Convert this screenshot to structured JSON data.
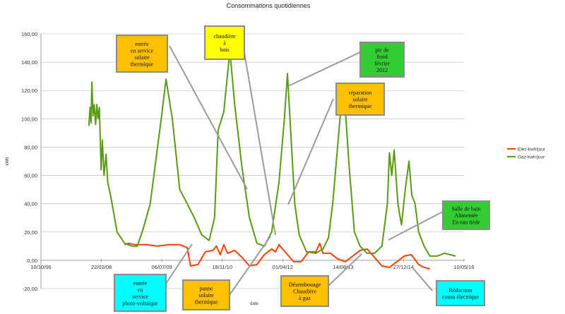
{
  "chart_data": {
    "type": "line",
    "title": "Consommations quotidiennes",
    "xlabel": "date",
    "ylabel": "kWh",
    "ylim": [
      -20,
      160
    ],
    "xlim": [
      "2006-10-10",
      "2016-05-10"
    ],
    "y_ticks": [
      "-20,00",
      "0,00",
      "20,00",
      "40,00",
      "60,00",
      "80,00",
      "100,00",
      "120,00",
      "140,00",
      "160,00"
    ],
    "x_ticks": [
      "10/10/06",
      "22/02/08",
      "06/07/09",
      "18/11/10",
      "01/04/12",
      "14/08/13",
      "27/12/14",
      "10/05/16"
    ],
    "grid": "horizontal",
    "legend_position": "right",
    "series": [
      {
        "name": "Elec-kwh/jour",
        "color": "#ff4000",
        "points": [
          [
            "2008-09-01",
            11
          ],
          [
            "2008-10-01",
            12
          ],
          [
            "2008-12-01",
            11
          ],
          [
            "2009-03-01",
            11
          ],
          [
            "2009-06-01",
            10
          ],
          [
            "2009-09-01",
            11
          ],
          [
            "2009-12-01",
            11
          ],
          [
            "2010-02-01",
            9
          ],
          [
            "2010-03-01",
            -4
          ],
          [
            "2010-05-01",
            -3
          ],
          [
            "2010-07-01",
            6
          ],
          [
            "2010-09-01",
            7
          ],
          [
            "2010-10-01",
            10
          ],
          [
            "2010-11-01",
            4
          ],
          [
            "2010-12-01",
            11
          ],
          [
            "2011-01-01",
            5
          ],
          [
            "2011-03-01",
            7
          ],
          [
            "2011-05-01",
            2
          ],
          [
            "2011-07-01",
            -4
          ],
          [
            "2011-09-01",
            -3
          ],
          [
            "2011-11-01",
            4
          ],
          [
            "2012-01-01",
            8
          ],
          [
            "2012-02-01",
            6
          ],
          [
            "2012-03-01",
            11
          ],
          [
            "2012-05-01",
            5
          ],
          [
            "2012-07-01",
            -1
          ],
          [
            "2012-09-01",
            -1
          ],
          [
            "2012-11-01",
            6
          ],
          [
            "2013-01-01",
            6
          ],
          [
            "2013-02-01",
            12
          ],
          [
            "2013-03-01",
            5
          ],
          [
            "2013-05-01",
            5
          ],
          [
            "2013-07-01",
            1
          ],
          [
            "2013-09-01",
            -1
          ],
          [
            "2013-11-01",
            3
          ],
          [
            "2014-01-01",
            7
          ],
          [
            "2014-03-01",
            8
          ],
          [
            "2014-05-01",
            2
          ],
          [
            "2014-07-01",
            -4
          ],
          [
            "2014-09-01",
            -5
          ],
          [
            "2014-11-01",
            -1
          ],
          [
            "2015-01-01",
            3
          ],
          [
            "2015-03-01",
            4
          ],
          [
            "2015-05-01",
            -3
          ],
          [
            "2015-06-15",
            -5
          ],
          [
            "2015-08-01",
            -6
          ]
        ]
      },
      {
        "name": "Gaz-kwh/jour",
        "color": "#5a9a14",
        "points": [
          [
            "2007-11-10",
            95
          ],
          [
            "2007-11-20",
            108
          ],
          [
            "2007-11-28",
            97
          ],
          [
            "2007-12-05",
            126
          ],
          [
            "2007-12-15",
            102
          ],
          [
            "2007-12-25",
            110
          ],
          [
            "2008-01-05",
            96
          ],
          [
            "2008-01-15",
            110
          ],
          [
            "2008-01-25",
            100
          ],
          [
            "2008-02-05",
            108
          ],
          [
            "2008-02-20",
            64
          ],
          [
            "2008-03-01",
            85
          ],
          [
            "2008-03-15",
            60
          ],
          [
            "2008-04-01",
            75
          ],
          [
            "2008-04-15",
            55
          ],
          [
            "2008-05-10",
            45
          ],
          [
            "2008-07-01",
            20
          ],
          [
            "2008-09-01",
            12
          ],
          [
            "2008-11-01",
            10
          ],
          [
            "2008-12-15",
            10
          ],
          [
            "2009-02-01",
            22
          ],
          [
            "2009-04-01",
            40
          ],
          [
            "2009-07-01",
            100
          ],
          [
            "2009-08-10",
            128
          ],
          [
            "2009-10-01",
            100
          ],
          [
            "2009-12-01",
            50
          ],
          [
            "2010-02-01",
            40
          ],
          [
            "2010-04-01",
            30
          ],
          [
            "2010-06-01",
            18
          ],
          [
            "2010-08-01",
            14
          ],
          [
            "2010-09-15",
            30
          ],
          [
            "2010-10-15",
            92
          ],
          [
            "2010-12-01",
            105
          ],
          [
            "2011-01-20",
            148
          ],
          [
            "2011-03-01",
            110
          ],
          [
            "2011-05-01",
            65
          ],
          [
            "2011-07-01",
            30
          ],
          [
            "2011-09-01",
            12
          ],
          [
            "2011-11-01",
            10
          ],
          [
            "2012-01-01",
            20
          ],
          [
            "2012-03-01",
            55
          ],
          [
            "2012-04-15",
            100
          ],
          [
            "2012-05-10",
            132
          ],
          [
            "2012-06-10",
            85
          ],
          [
            "2012-07-10",
            40
          ],
          [
            "2012-08-15",
            18
          ],
          [
            "2012-10-15",
            6
          ],
          [
            "2013-01-01",
            5
          ],
          [
            "2013-03-01",
            8
          ],
          [
            "2013-04-15",
            16
          ],
          [
            "2013-05-20",
            40
          ],
          [
            "2013-07-01",
            82
          ],
          [
            "2013-07-25",
            106
          ],
          [
            "2013-08-20",
            122
          ],
          [
            "2013-10-01",
            68
          ],
          [
            "2013-11-15",
            20
          ],
          [
            "2014-01-01",
            10
          ],
          [
            "2014-03-01",
            5
          ],
          [
            "2014-05-01",
            5
          ],
          [
            "2014-07-01",
            10
          ],
          [
            "2014-08-15",
            40
          ],
          [
            "2014-09-01",
            76
          ],
          [
            "2014-09-20",
            60
          ],
          [
            "2014-10-10",
            78
          ],
          [
            "2014-11-10",
            40
          ],
          [
            "2014-12-10",
            25
          ],
          [
            "2015-01-10",
            50
          ],
          [
            "2015-02-10",
            70
          ],
          [
            "2015-03-05",
            46
          ],
          [
            "2015-04-01",
            40
          ],
          [
            "2015-05-01",
            20
          ],
          [
            "2015-06-15",
            10
          ],
          [
            "2015-08-01",
            3
          ],
          [
            "2015-10-01",
            3
          ],
          [
            "2015-12-01",
            5
          ],
          [
            "2016-01-15",
            4
          ],
          [
            "2016-03-01",
            3
          ]
        ]
      }
    ],
    "annotations": [
      {
        "lines": [
          "entrée",
          "en service",
          "solaire",
          "thermique"
        ],
        "color": "#ffc000"
      },
      {
        "lines": [
          "chaudière",
          "à",
          "bois"
        ],
        "color": "#ffff00"
      },
      {
        "lines": [
          "pic de",
          "froid",
          "février",
          "2012"
        ],
        "color": "#33cc33"
      },
      {
        "lines": [
          "réparation",
          "solaire",
          "thermique"
        ],
        "color": "#ffc000"
      },
      {
        "lines": [
          "Salle de bain",
          "Alimentée",
          "En eau tiède"
        ],
        "color": "#33cc33"
      },
      {
        "lines": [
          "entrée",
          "en",
          "service",
          "photo-voltaïque"
        ],
        "color": "#00ffff"
      },
      {
        "lines": [
          "panne",
          "solaire",
          "thermique"
        ],
        "color": "#ffc000"
      },
      {
        "lines": [
          "Désembouage",
          "Chaudière",
          "à gaz"
        ],
        "color": "#ffc000"
      },
      {
        "lines": [
          "Réduction",
          "conso électrique"
        ],
        "color": "#00ffff"
      }
    ]
  }
}
